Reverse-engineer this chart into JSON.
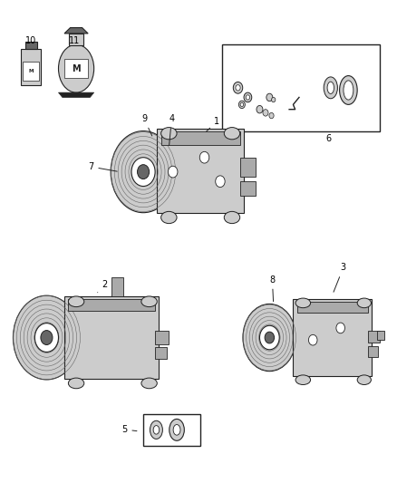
{
  "bg_color": "#ffffff",
  "figsize": [
    4.38,
    5.33
  ],
  "dpi": 100,
  "black": "#000000",
  "dark": "#222222",
  "mid": "#666666",
  "light": "#aaaaaa",
  "lighter": "#cccccc",
  "white": "#ffffff"
}
